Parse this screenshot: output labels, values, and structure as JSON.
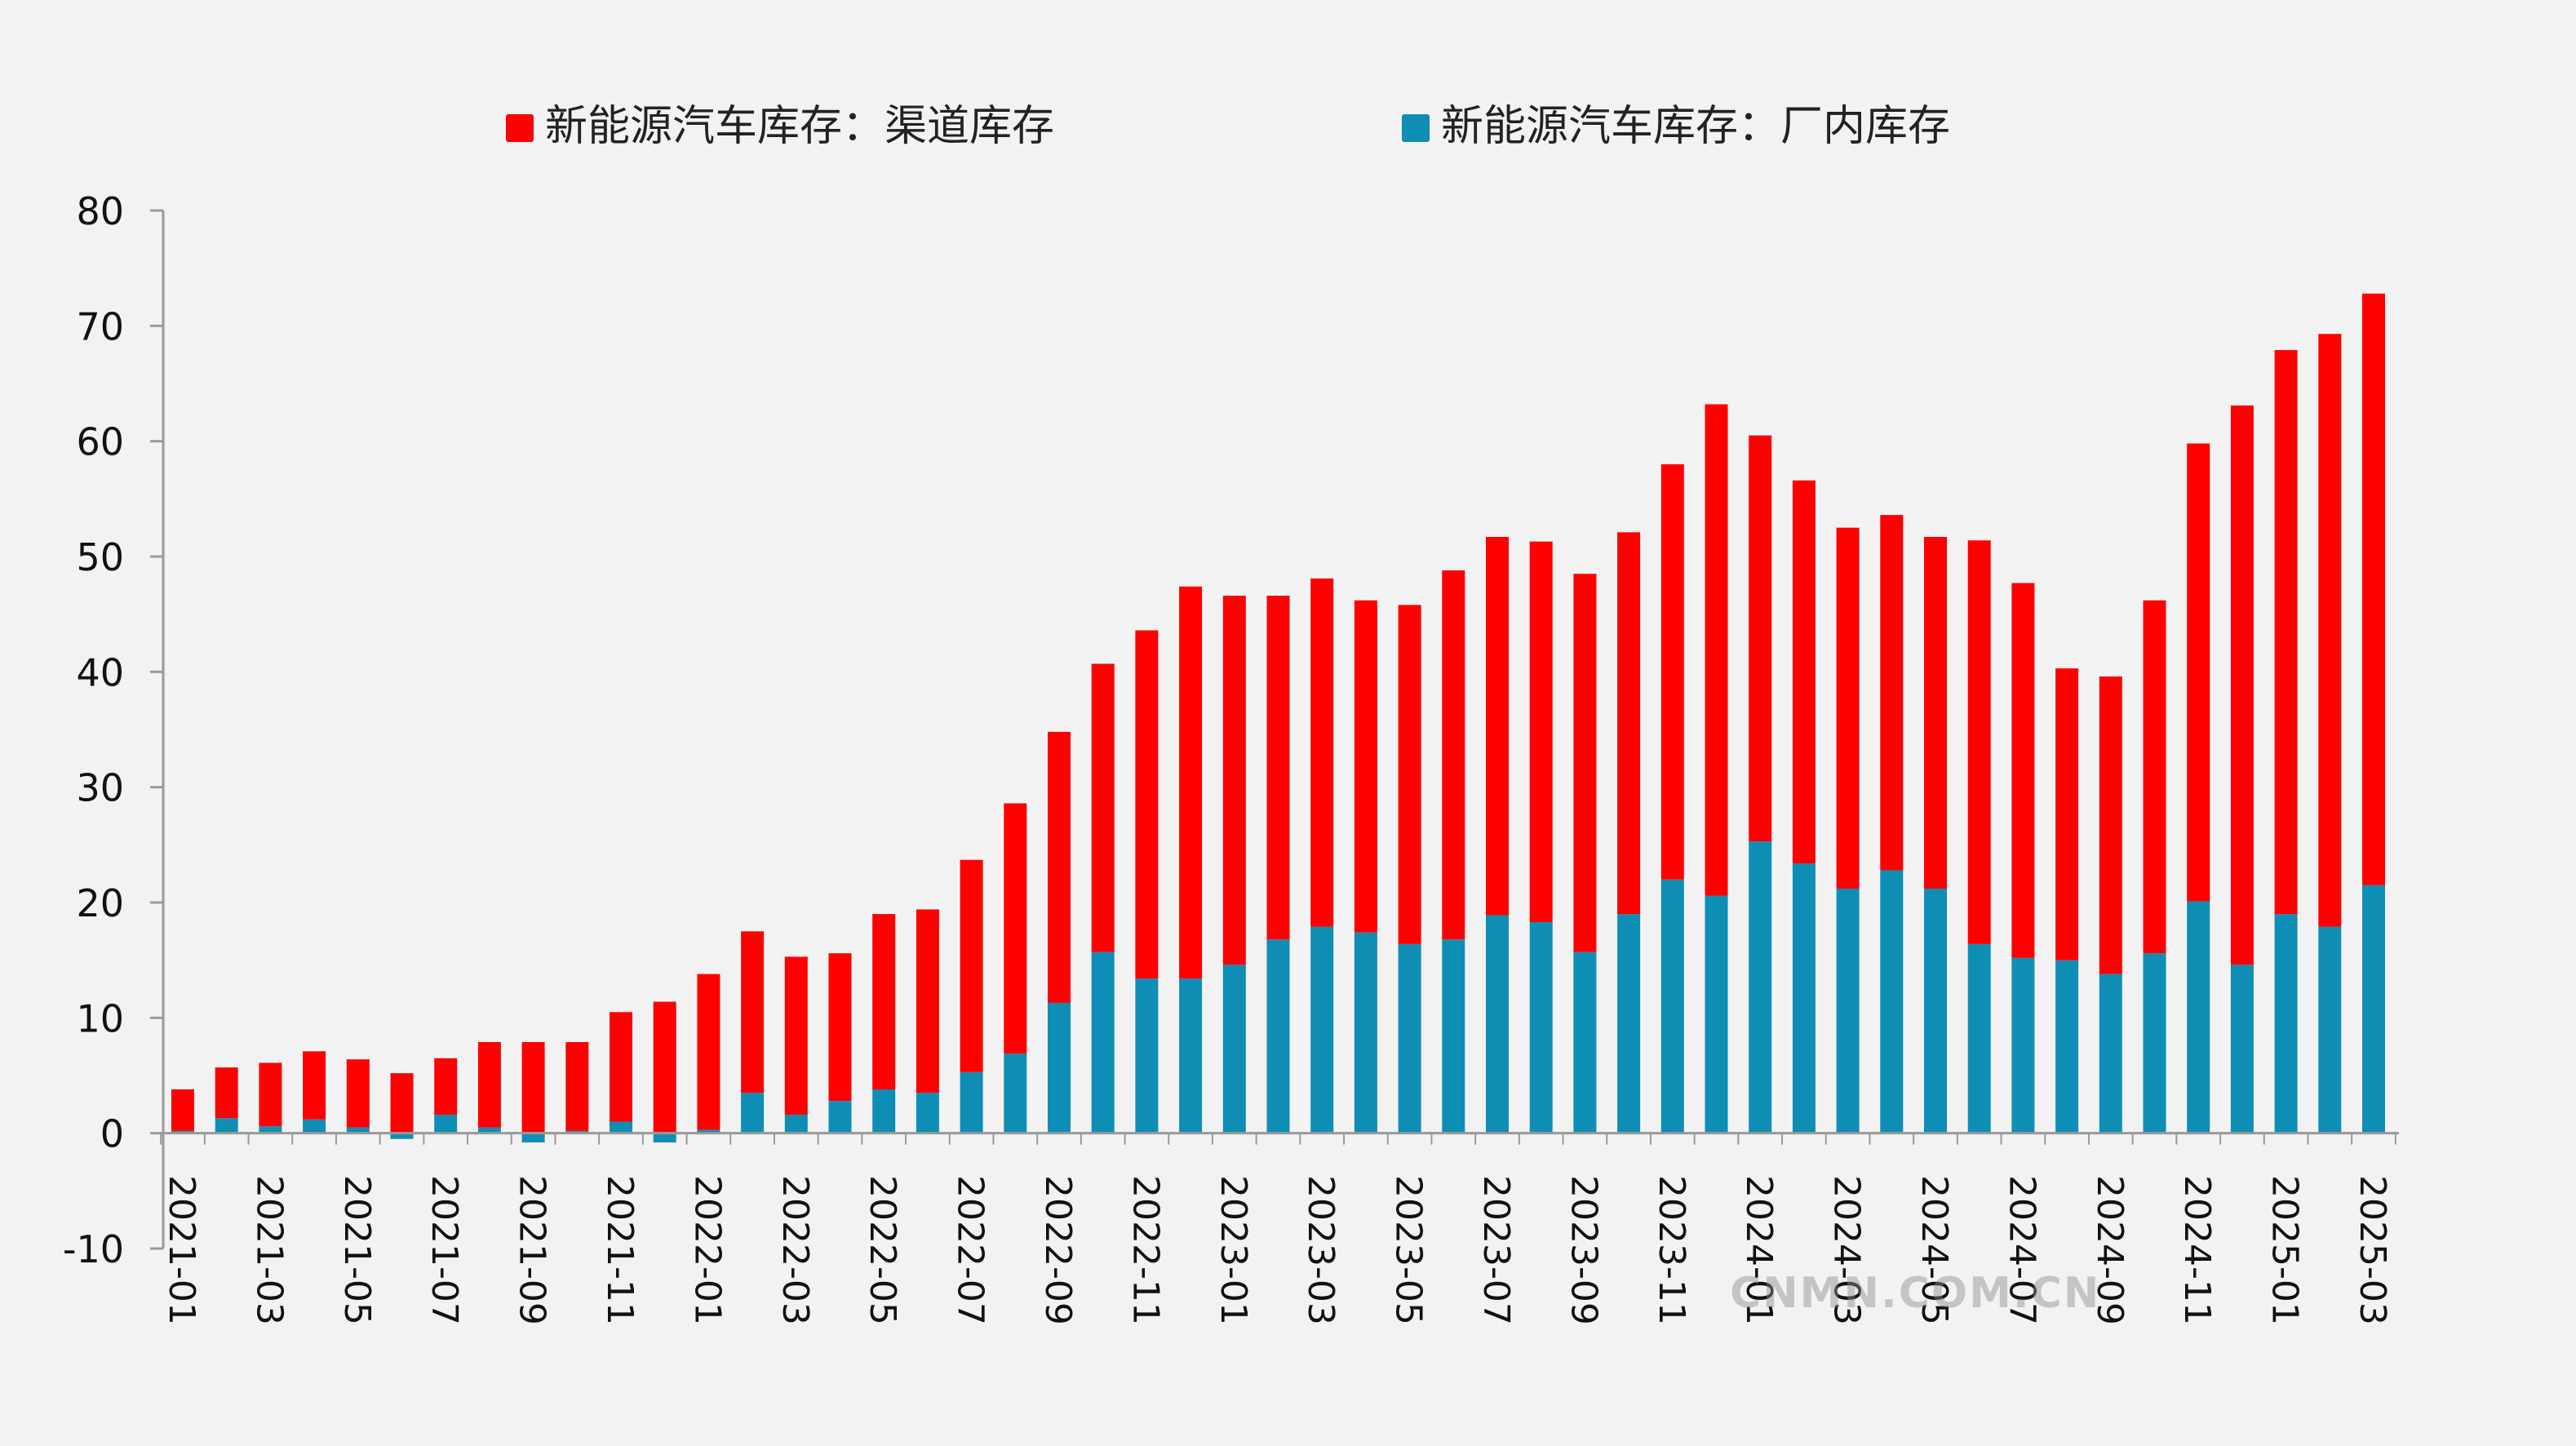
{
  "chart_data": {
    "type": "bar",
    "stacked": true,
    "title": "",
    "xlabel": "",
    "ylabel": "",
    "ylim": [
      -10,
      80
    ],
    "yticks": [
      80,
      70,
      60,
      50,
      40,
      30,
      20,
      10,
      0,
      -10
    ],
    "legend_position": "top-center",
    "categories": [
      "2021-01",
      "2021-02",
      "2021-03",
      "2021-04",
      "2021-05",
      "2021-06",
      "2021-07",
      "2021-08",
      "2021-09",
      "2021-10",
      "2021-11",
      "2021-12",
      "2022-01",
      "2022-02",
      "2022-03",
      "2022-04",
      "2022-05",
      "2022-06",
      "2022-07",
      "2022-08",
      "2022-09",
      "2022-10",
      "2022-11",
      "2022-12",
      "2023-01",
      "2023-02",
      "2023-03",
      "2023-04",
      "2023-05",
      "2023-06",
      "2023-07",
      "2023-08",
      "2023-09",
      "2023-10",
      "2023-11",
      "2023-12",
      "2024-01",
      "2024-02",
      "2024-03",
      "2024-04",
      "2024-05",
      "2024-06",
      "2024-07",
      "2024-08",
      "2024-09",
      "2024-10",
      "2024-11",
      "2024-12",
      "2025-01",
      "2025-02",
      "2025-03"
    ],
    "tick_labels": [
      "2021-01",
      "2021-03",
      "2021-05",
      "2021-07",
      "2021-09",
      "2021-11",
      "2022-01",
      "2022-03",
      "2022-05",
      "2022-07",
      "2022-09",
      "2022-11",
      "2023-01",
      "2023-03",
      "2023-05",
      "2023-07",
      "2023-09",
      "2023-11",
      "2024-01",
      "2024-03",
      "2024-05",
      "2024-07",
      "2024-09",
      "2024-11",
      "2025-01",
      "2025-03"
    ],
    "series": [
      {
        "name": "新能源汽车库存：厂内库存",
        "color": "#0e8db5",
        "values": [
          0.2,
          1.3,
          0.6,
          1.2,
          0.5,
          -0.5,
          1.6,
          0.5,
          -0.8,
          0.2,
          1.0,
          -0.8,
          0.3,
          3.5,
          1.6,
          2.8,
          3.8,
          3.5,
          5.3,
          6.9,
          11.3,
          15.7,
          13.4,
          13.4,
          14.6,
          16.8,
          17.9,
          17.4,
          16.4,
          16.8,
          18.9,
          18.3,
          15.7,
          19.0,
          22.0,
          20.6,
          25.3,
          23.4,
          21.2,
          22.8,
          21.2,
          16.4,
          15.2,
          15.0,
          13.8,
          15.6,
          20.1,
          14.6,
          19.0,
          17.9,
          21.5
        ]
      },
      {
        "name": "新能源汽车库存：渠道库存",
        "color": "#fe0000",
        "values": [
          3.6,
          4.4,
          5.5,
          5.9,
          5.9,
          5.2,
          4.9,
          7.4,
          7.9,
          7.7,
          9.5,
          11.4,
          13.5,
          14.0,
          13.7,
          12.8,
          15.2,
          15.9,
          18.4,
          21.7,
          23.5,
          25.0,
          30.2,
          34.0,
          32.0,
          29.8,
          30.2,
          28.8,
          29.4,
          32.0,
          32.8,
          33.0,
          32.8,
          33.1,
          36.0,
          42.6,
          35.2,
          33.2,
          31.3,
          30.8,
          30.5,
          35.0,
          32.5,
          25.3,
          25.8,
          30.6,
          39.7,
          48.5,
          48.9,
          51.4,
          51.3
        ]
      }
    ]
  },
  "watermark": "CNMN.COM.CN"
}
